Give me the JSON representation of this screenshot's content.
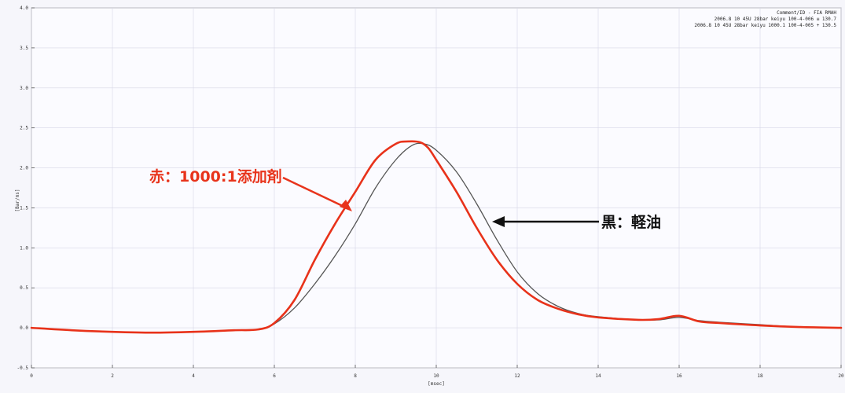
{
  "header": {
    "line1": "Comment/ID - FIA RMAH",
    "line2": "2006.8 10 45U 28bar keiyu  100-4-006  ≡ 130.7",
    "line3": "2006.8 10 45U 28bar keiyu  1000.1 100-4-005  + 130.5"
  },
  "annotations": {
    "red_label": "赤：1000:1添加剤",
    "black_label": "黒：軽油"
  },
  "chart_data": {
    "type": "line",
    "xlabel": "[msec]",
    "ylabel": "[Bar/ms]",
    "xlim": [
      0,
      20
    ],
    "ylim": [
      -0.5,
      4.0
    ],
    "x_ticks": [
      "0",
      "2",
      "4",
      "6",
      "8",
      "10",
      "12",
      "14",
      "16",
      "18",
      "20"
    ],
    "y_ticks": [
      "-0.5",
      "0.0",
      "0.5",
      "1.0",
      "1.5",
      "2.0",
      "2.5",
      "3.0",
      "3.5",
      "4.0"
    ],
    "grid": true,
    "series": [
      {
        "name": "黒：軽油",
        "color": "#555555",
        "x": [
          0,
          1,
          2,
          3,
          4,
          5,
          5.6,
          6.0,
          6.5,
          7.0,
          7.5,
          8.0,
          8.5,
          9.0,
          9.4,
          9.7,
          10.0,
          10.5,
          11.0,
          11.5,
          12.0,
          12.5,
          13.0,
          13.5,
          14.0,
          15.0,
          15.5,
          16.0,
          16.5,
          17.0,
          18.0,
          19.0,
          20.0
        ],
        "y": [
          0.0,
          -0.03,
          -0.05,
          -0.06,
          -0.05,
          -0.03,
          -0.02,
          0.05,
          0.25,
          0.55,
          0.9,
          1.3,
          1.75,
          2.1,
          2.28,
          2.3,
          2.22,
          1.95,
          1.55,
          1.1,
          0.7,
          0.43,
          0.27,
          0.18,
          0.14,
          0.1,
          0.1,
          0.13,
          0.09,
          0.07,
          0.04,
          0.01,
          0.0
        ]
      },
      {
        "name": "赤：1000:1添加剤",
        "color": "#e8321a",
        "x": [
          0,
          1,
          2,
          3,
          4,
          5,
          5.6,
          6.0,
          6.5,
          7.0,
          7.5,
          8.0,
          8.5,
          9.0,
          9.3,
          9.6,
          9.8,
          10.0,
          10.5,
          11.0,
          11.5,
          12.0,
          12.5,
          13.0,
          13.5,
          14.0,
          15.0,
          15.5,
          16.0,
          16.5,
          17.0,
          18.0,
          19.0,
          20.0
        ],
        "y": [
          0.0,
          -0.03,
          -0.05,
          -0.06,
          -0.05,
          -0.03,
          -0.02,
          0.06,
          0.35,
          0.85,
          1.3,
          1.7,
          2.1,
          2.3,
          2.33,
          2.32,
          2.25,
          2.1,
          1.7,
          1.25,
          0.85,
          0.55,
          0.35,
          0.24,
          0.17,
          0.13,
          0.1,
          0.11,
          0.15,
          0.08,
          0.06,
          0.03,
          0.01,
          0.0
        ]
      }
    ]
  }
}
